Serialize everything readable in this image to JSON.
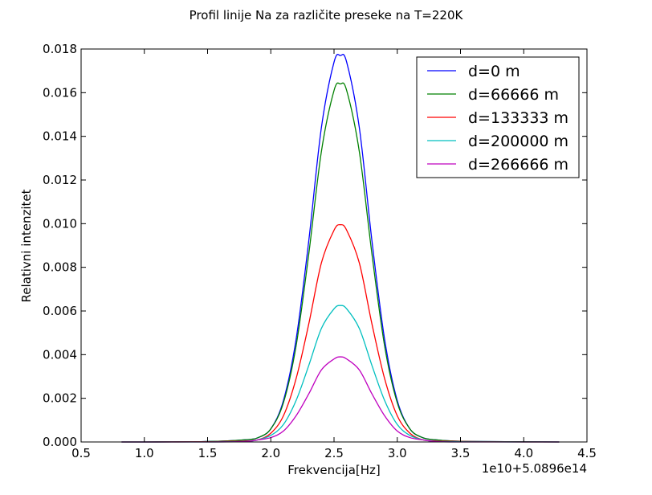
{
  "chart_data": {
    "type": "line",
    "title": "Profil linije Na za različite preseke na T=220K",
    "xlabel": "Frekvencija[Hz]",
    "ylabel": "Relativni intenzitet",
    "x_offset_label": "1e10+5.0896e14",
    "xlim": [
      0.5,
      4.5
    ],
    "ylim": [
      0.0,
      0.018
    ],
    "x_ticks": [
      0.5,
      1.0,
      1.5,
      2.0,
      2.5,
      3.0,
      3.5,
      4.0,
      4.5
    ],
    "x_tick_labels": [
      "0.5",
      "1.0",
      "1.5",
      "2.0",
      "2.5",
      "3.0",
      "3.5",
      "4.0",
      "4.5"
    ],
    "y_ticks": [
      0.0,
      0.002,
      0.004,
      0.006,
      0.008,
      0.01,
      0.012,
      0.014,
      0.016,
      0.018
    ],
    "y_tick_labels": [
      "0.000",
      "0.002",
      "0.004",
      "0.006",
      "0.008",
      "0.010",
      "0.012",
      "0.014",
      "0.016",
      "0.018"
    ],
    "grid": false,
    "legend_position": "top-right",
    "x": [
      0.82,
      1.0,
      1.5,
      1.8,
      1.9,
      2.0,
      2.1,
      2.2,
      2.3,
      2.4,
      2.5,
      2.55,
      2.6,
      2.7,
      2.8,
      2.9,
      3.0,
      3.1,
      3.2,
      3.3,
      3.5,
      4.0,
      4.28
    ],
    "series": [
      {
        "name": "d=0 m",
        "color": "#0000ff",
        "values": [
          0.0,
          0.0,
          2e-05,
          0.0001,
          0.0002,
          0.0006,
          0.0019,
          0.0047,
          0.0092,
          0.0144,
          0.0174,
          0.0177,
          0.0174,
          0.0144,
          0.0092,
          0.0047,
          0.0019,
          0.0006,
          0.0002,
          0.0001,
          3e-05,
          1e-05,
          0.0
        ]
      },
      {
        "name": "d=66666 m",
        "color": "#008000",
        "values": [
          0.0,
          0.0,
          2e-05,
          0.0001,
          0.0002,
          0.0006,
          0.0018,
          0.0044,
          0.0086,
          0.0133,
          0.0161,
          0.0164,
          0.0161,
          0.0133,
          0.0086,
          0.0044,
          0.0018,
          0.0006,
          0.0002,
          0.0001,
          3e-05,
          1e-05,
          0.0
        ]
      },
      {
        "name": "d=133333 m",
        "color": "#ff0000",
        "values": [
          0.0,
          0.0,
          1e-05,
          5e-05,
          0.0001,
          0.0004,
          0.0012,
          0.0029,
          0.0054,
          0.0082,
          0.0097,
          0.00995,
          0.0097,
          0.0082,
          0.0054,
          0.0029,
          0.0012,
          0.0004,
          0.0001,
          5e-05,
          2e-05,
          0.0,
          0.0
        ]
      },
      {
        "name": "d=200000 m",
        "color": "#00bfbf",
        "values": [
          0.0,
          0.0,
          0.0,
          3e-05,
          0.0001,
          0.0003,
          0.0008,
          0.0019,
          0.0035,
          0.0052,
          0.0061,
          0.00625,
          0.0061,
          0.0052,
          0.0035,
          0.0019,
          0.0008,
          0.0003,
          0.0001,
          3e-05,
          1e-05,
          0.0,
          0.0
        ]
      },
      {
        "name": "d=266666 m",
        "color": "#bf00bf",
        "values": [
          0.0,
          0.0,
          0.0,
          2e-05,
          0.0001,
          0.0002,
          0.0005,
          0.0012,
          0.0022,
          0.0033,
          0.0038,
          0.0039,
          0.0038,
          0.0033,
          0.0022,
          0.0012,
          0.0005,
          0.0002,
          0.0001,
          2e-05,
          0.0,
          0.0,
          0.0
        ]
      }
    ]
  }
}
